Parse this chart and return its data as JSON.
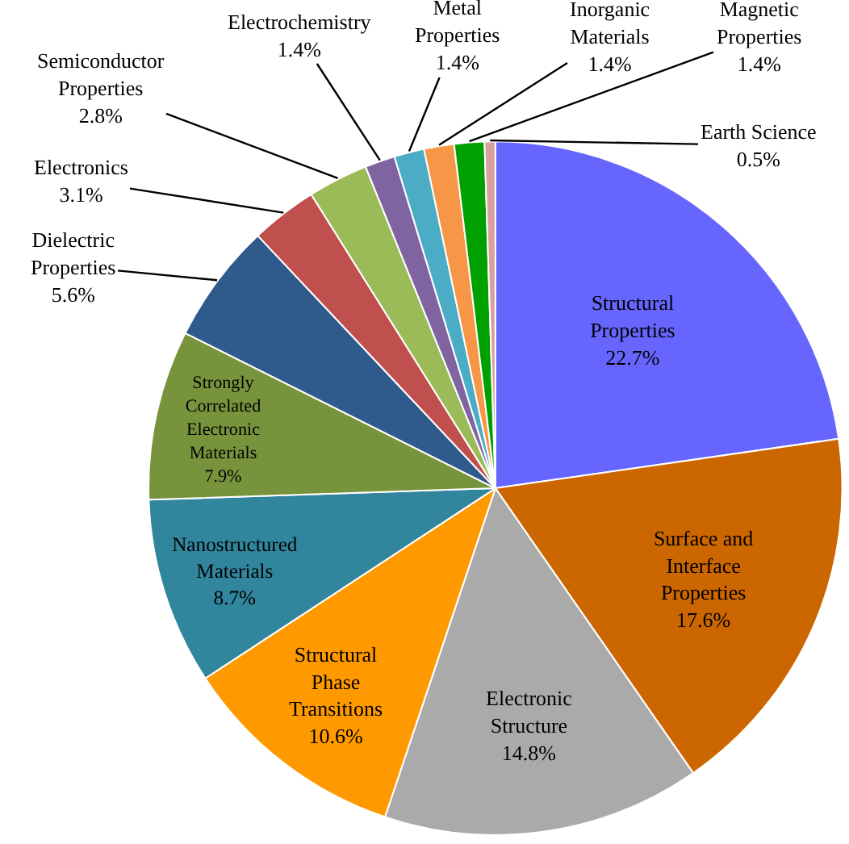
{
  "chart_data": {
    "type": "pie",
    "categories": [
      "Structural Properties",
      "Surface and Interface Properties",
      "Electronic Structure",
      "Structural Phase Transitions",
      "Nanostructured Materials",
      "Strongly Correlated Electronic Materials",
      "Dielectric Properties",
      "Electronics",
      "Semiconductor Properties",
      "Electrochemistry",
      "Metal Properties",
      "Inorganic Materials",
      "Magnetic Properties",
      "Earth Science"
    ],
    "values": [
      22.7,
      17.6,
      14.8,
      10.6,
      8.7,
      7.9,
      5.6,
      3.1,
      2.8,
      1.4,
      1.4,
      1.4,
      1.4,
      0.5
    ],
    "value_labels": [
      "22.7%",
      "17.6%",
      "14.8%",
      "10.6%",
      "8.7%",
      "7.9%",
      "5.6%",
      "3.1%",
      "2.8%",
      "1.4%",
      "1.4%",
      "1.4%",
      "1.4%",
      "0.5%"
    ],
    "colors": [
      "#6666ff",
      "#cc6600",
      "#aaaaaa",
      "#ff9900",
      "#31859c",
      "#77933c",
      "#2f5a8c",
      "#c0504d",
      "#9bbb59",
      "#8064a2",
      "#4bacc6",
      "#f79646",
      "#00a000",
      "#d9a0a0"
    ],
    "legend": false
  }
}
